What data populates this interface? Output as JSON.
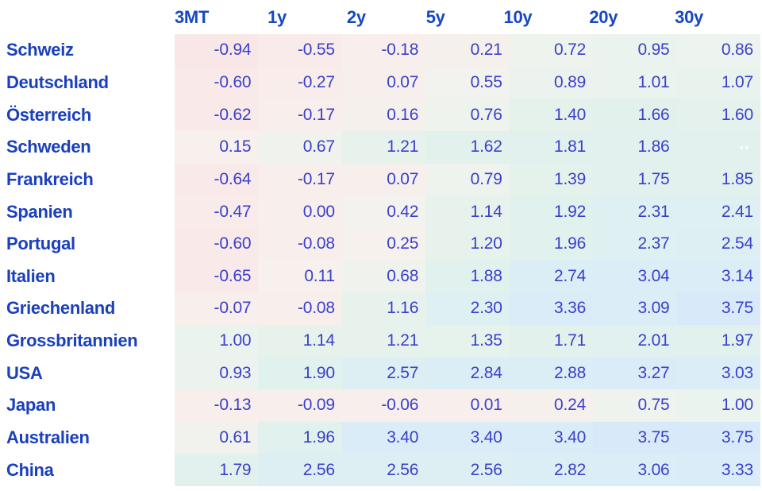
{
  "table": {
    "columns": [
      "3MT",
      "1y",
      "2y",
      "5y",
      "10y",
      "20y",
      "30y"
    ],
    "rows": [
      {
        "country": "Schweiz",
        "values": [
          "-0.94",
          "-0.55",
          "-0.18",
          "0.21",
          "0.72",
          "0.95",
          "0.86"
        ]
      },
      {
        "country": "Deutschland",
        "values": [
          "-0.60",
          "-0.27",
          "0.07",
          "0.55",
          "0.89",
          "1.01",
          "1.07"
        ]
      },
      {
        "country": "Österreich",
        "values": [
          "-0.62",
          "-0.17",
          "0.16",
          "0.76",
          "1.40",
          "1.66",
          "1.60"
        ]
      },
      {
        "country": "Schweden",
        "values": [
          "0.15",
          "0.67",
          "1.21",
          "1.62",
          "1.81",
          "1.86",
          ""
        ]
      },
      {
        "country": "Frankreich",
        "values": [
          "-0.64",
          "-0.17",
          "0.07",
          "0.79",
          "1.39",
          "1.75",
          "1.85"
        ]
      },
      {
        "country": "Spanien",
        "values": [
          "-0.47",
          "0.00",
          "0.42",
          "1.14",
          "1.92",
          "2.31",
          "2.41"
        ]
      },
      {
        "country": "Portugal",
        "values": [
          "-0.60",
          "-0.08",
          "0.25",
          "1.20",
          "1.96",
          "2.37",
          "2.54"
        ]
      },
      {
        "country": "Italien",
        "values": [
          "-0.65",
          "0.11",
          "0.68",
          "1.88",
          "2.74",
          "3.04",
          "3.14"
        ]
      },
      {
        "country": "Griechenland",
        "values": [
          "-0.07",
          "-0.08",
          "1.16",
          "2.30",
          "3.36",
          "3.09",
          "3.75"
        ]
      },
      {
        "country": "Grossbritannien",
        "values": [
          "1.00",
          "1.14",
          "1.21",
          "1.35",
          "1.71",
          "2.01",
          "1.97"
        ]
      },
      {
        "country": "USA",
        "values": [
          "0.93",
          "1.90",
          "2.57",
          "2.84",
          "2.88",
          "3.27",
          "3.03"
        ]
      },
      {
        "country": "Japan",
        "values": [
          "-0.13",
          "-0.09",
          "-0.06",
          "0.01",
          "0.24",
          "0.75",
          "1.00"
        ]
      },
      {
        "country": "Australien",
        "values": [
          "0.61",
          "1.96",
          "3.40",
          "3.40",
          "3.40",
          "3.75",
          "3.75"
        ]
      },
      {
        "country": "China",
        "values": [
          "1.79",
          "2.56",
          "2.56",
          "2.56",
          "2.82",
          "3.06",
          "3.33"
        ]
      }
    ],
    "empty_marker": "••"
  },
  "chart_data": {
    "type": "heatmap",
    "title": "",
    "x_labels": [
      "3MT",
      "1y",
      "2y",
      "5y",
      "10y",
      "20y",
      "30y"
    ],
    "y_labels": [
      "Schweiz",
      "Deutschland",
      "Österreich",
      "Schweden",
      "Frankreich",
      "Spanien",
      "Portugal",
      "Italien",
      "Griechenland",
      "Grossbritannien",
      "USA",
      "Japan",
      "Australien",
      "China"
    ],
    "values": [
      [
        -0.94,
        -0.55,
        -0.18,
        0.21,
        0.72,
        0.95,
        0.86
      ],
      [
        -0.6,
        -0.27,
        0.07,
        0.55,
        0.89,
        1.01,
        1.07
      ],
      [
        -0.62,
        -0.17,
        0.16,
        0.76,
        1.4,
        1.66,
        1.6
      ],
      [
        0.15,
        0.67,
        1.21,
        1.62,
        1.81,
        1.86,
        null
      ],
      [
        -0.64,
        -0.17,
        0.07,
        0.79,
        1.39,
        1.75,
        1.85
      ],
      [
        -0.47,
        0.0,
        0.42,
        1.14,
        1.92,
        2.31,
        2.41
      ],
      [
        -0.6,
        -0.08,
        0.25,
        1.2,
        1.96,
        2.37,
        2.54
      ],
      [
        -0.65,
        0.11,
        0.68,
        1.88,
        2.74,
        3.04,
        3.14
      ],
      [
        -0.07,
        -0.08,
        1.16,
        2.3,
        3.36,
        3.09,
        3.75
      ],
      [
        1.0,
        1.14,
        1.21,
        1.35,
        1.71,
        2.01,
        1.97
      ],
      [
        0.93,
        1.9,
        2.57,
        2.84,
        2.88,
        3.27,
        3.03
      ],
      [
        -0.13,
        -0.09,
        -0.06,
        0.01,
        0.24,
        0.75,
        1.0
      ],
      [
        0.61,
        1.96,
        3.4,
        3.4,
        3.4,
        3.75,
        3.75
      ],
      [
        1.79,
        2.56,
        2.56,
        2.56,
        2.82,
        3.06,
        3.33
      ]
    ],
    "legend_position": "none",
    "grid": false
  },
  "colors": {
    "header_text": "#1648c2",
    "row_label_text": "#1a40bc",
    "value_text": "#3a41c9",
    "background": "#ffffff",
    "heatmap_stops": [
      [
        -1.0,
        "#f9e7e7"
      ],
      [
        0.0,
        "#f8efec"
      ],
      [
        0.5,
        "#f3f2ee"
      ],
      [
        0.9,
        "#ecf3ee"
      ],
      [
        1.3,
        "#e6f2ec"
      ],
      [
        1.8,
        "#e2f1ed"
      ],
      [
        2.3,
        "#def0f1"
      ],
      [
        2.8,
        "#dceef5"
      ],
      [
        3.3,
        "#daecf8"
      ],
      [
        3.8,
        "#d8eafa"
      ]
    ]
  }
}
